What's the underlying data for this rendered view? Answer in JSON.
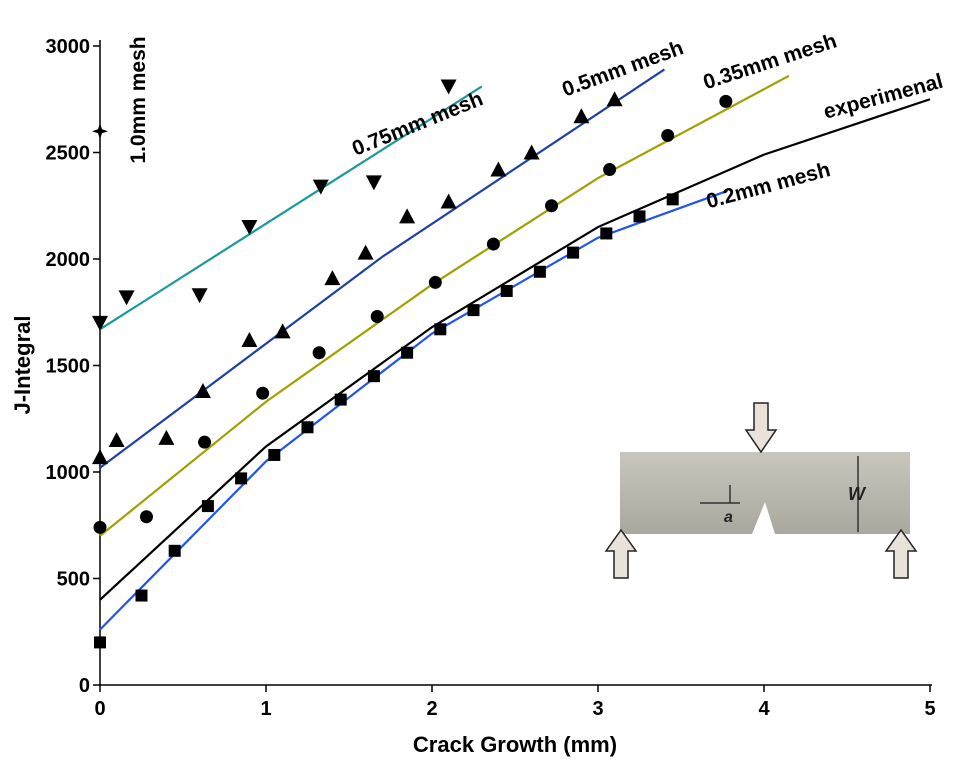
{
  "chart_data": {
    "type": "scatter-fit",
    "xlabel": "Crack Growth (mm)",
    "ylabel": "J-Integral",
    "xlim": [
      0,
      5
    ],
    "xticks": [
      0,
      1,
      2,
      3,
      4,
      5
    ],
    "ylim": [
      0,
      3000
    ],
    "yticks": [
      0,
      500,
      1000,
      1500,
      2000,
      2500,
      3000
    ],
    "series": [
      {
        "name": "1.0mm mesh",
        "color": "#000000",
        "marker": "star",
        "x": [
          0
        ],
        "values": [
          2600
        ]
      },
      {
        "name": "0.75mm mesh",
        "color": "#1a9a9a",
        "marker": "triangle-down",
        "x": [
          0,
          0.16,
          0.6,
          0.9,
          1.33,
          1.65,
          2.1
        ],
        "values": [
          1700,
          1820,
          1830,
          2150,
          2340,
          2360,
          2810
        ],
        "fit_x": [
          0,
          2.3
        ],
        "fit_values": [
          1670,
          2810
        ]
      },
      {
        "name": "0.5mm mesh",
        "color": "#1f3fa8",
        "marker": "triangle-up",
        "x": [
          0,
          0.1,
          0.4,
          0.62,
          0.9,
          1.1,
          1.4,
          1.6,
          1.85,
          2.1,
          2.4,
          2.6,
          2.9,
          3.1
        ],
        "values": [
          1070,
          1150,
          1160,
          1380,
          1620,
          1660,
          1910,
          2030,
          2200,
          2270,
          2420,
          2500,
          2670,
          2750
        ],
        "fit_x": [
          0,
          1.7,
          3.4
        ],
        "fit_values": [
          1020,
          2010,
          2890
        ]
      },
      {
        "name": "0.35mm mesh",
        "color": "#a0a000",
        "marker": "circle",
        "x": [
          0,
          0.28,
          0.63,
          0.98,
          1.32,
          1.67,
          2.02,
          2.37,
          2.72,
          3.07,
          3.42,
          3.77
        ],
        "values": [
          740,
          790,
          1140,
          1370,
          1560,
          1730,
          1890,
          2070,
          2250,
          2420,
          2580,
          2740
        ],
        "fit_x": [
          0,
          1,
          2,
          3,
          4.15
        ],
        "fit_values": [
          700,
          1330,
          1880,
          2380,
          2860
        ]
      },
      {
        "name": "experimenal",
        "color": "#000000",
        "marker": "none",
        "fit_x": [
          0,
          1,
          2,
          3,
          4,
          5
        ],
        "fit_values": [
          400,
          1120,
          1680,
          2150,
          2490,
          2750
        ]
      },
      {
        "name": "0.2mm mesh",
        "color": "#2255ee",
        "marker": "square",
        "x": [
          0,
          0.25,
          0.45,
          0.65,
          0.85,
          1.05,
          1.25,
          1.45,
          1.65,
          1.85,
          2.05,
          2.25,
          2.45,
          2.65,
          2.85,
          3.05,
          3.25,
          3.45
        ],
        "values": [
          200,
          420,
          630,
          840,
          970,
          1080,
          1210,
          1340,
          1450,
          1560,
          1670,
          1760,
          1850,
          1940,
          2030,
          2120,
          2200,
          2280
        ],
        "fit_x": [
          0,
          1,
          2,
          3,
          3.78
        ],
        "fit_values": [
          260,
          1050,
          1650,
          2100,
          2320
        ]
      }
    ],
    "inset_labels": [
      "a",
      "W"
    ]
  }
}
